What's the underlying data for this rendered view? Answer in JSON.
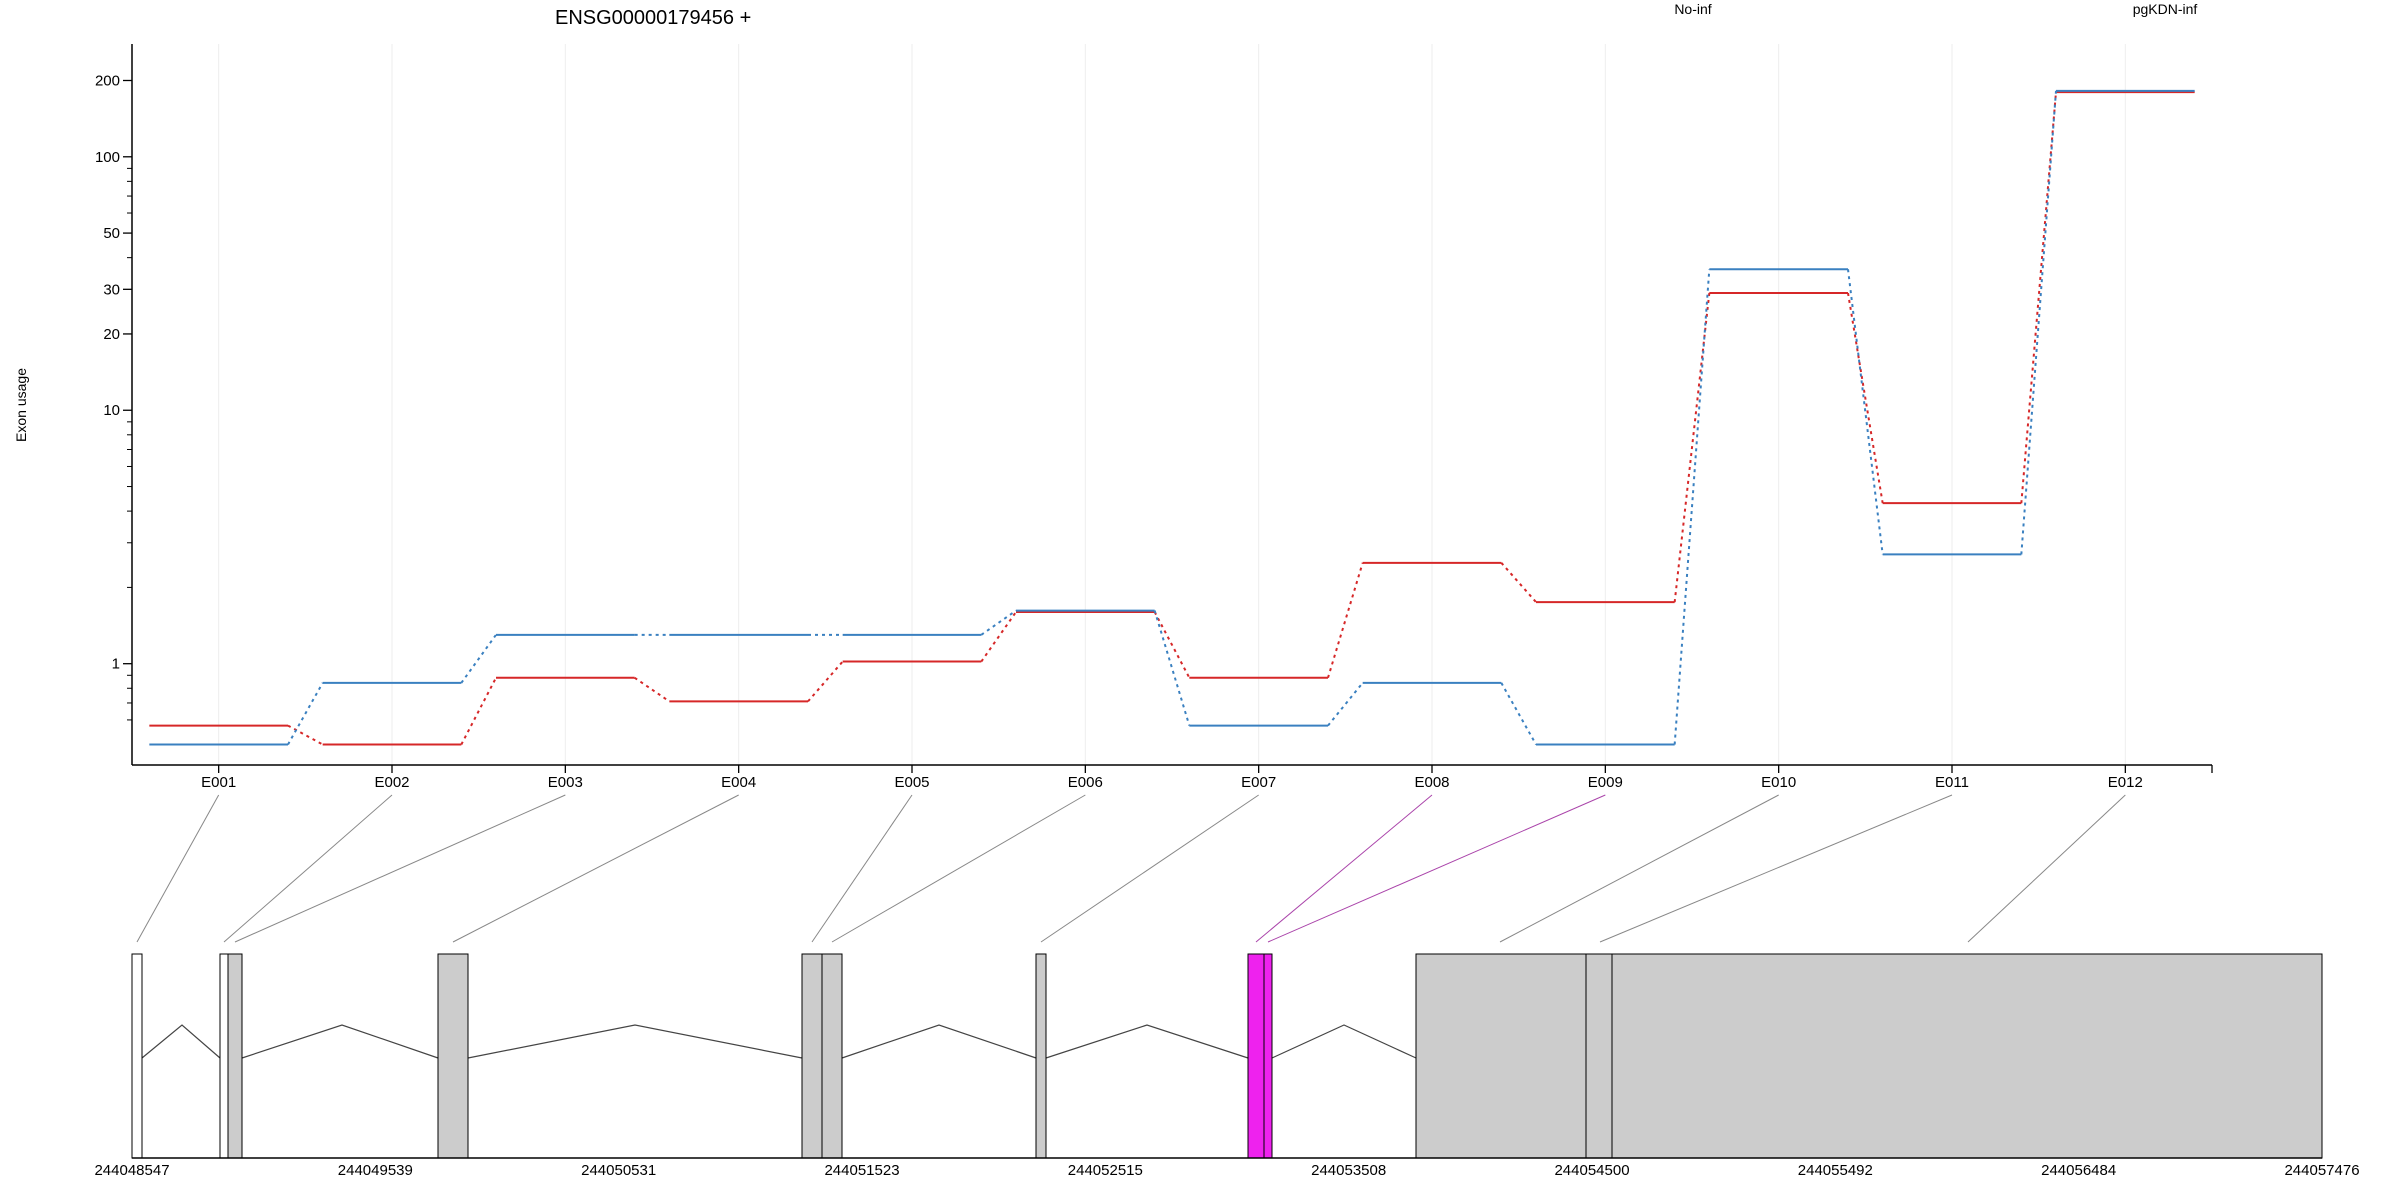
{
  "chart_data": [
    {
      "type": "line",
      "title": "ENSG00000179456 +",
      "ylabel": "Exon usage",
      "yscale": "log",
      "ylim": [
        0.5,
        220
      ],
      "yticks": [
        1,
        10,
        20,
        30,
        50,
        100,
        200
      ],
      "categories": [
        "E001",
        "E002",
        "E003",
        "E004",
        "E005",
        "E006",
        "E007",
        "E008",
        "E009",
        "E010",
        "E011",
        "E012"
      ],
      "grid": true,
      "legend": "top",
      "series": [
        {
          "name": "No-inf",
          "color": "#d62728",
          "values": [
            0.57,
            0.48,
            0.88,
            0.71,
            1.02,
            1.6,
            0.88,
            2.5,
            1.75,
            29,
            4.3,
            180
          ]
        },
        {
          "name": "pgKDN-inf",
          "color": "#3a80c0",
          "values": [
            0.48,
            0.84,
            1.3,
            1.3,
            1.3,
            1.62,
            0.57,
            0.84,
            0.48,
            36,
            2.7,
            182
          ]
        }
      ]
    },
    {
      "type": "gene-model",
      "genomic_ticks": [
        "244048547",
        "244049539",
        "244050531",
        "244051523",
        "244052515",
        "244053508",
        "244054500",
        "244055492",
        "244056484",
        "244057476"
      ],
      "box_fill": "#cccccc",
      "highlight_fill": "#ee22ee",
      "connector_color": "#888888",
      "highlight_connector_color": "#aa44aa",
      "highlighted_exons": [
        "E008",
        "E009"
      ]
    }
  ]
}
